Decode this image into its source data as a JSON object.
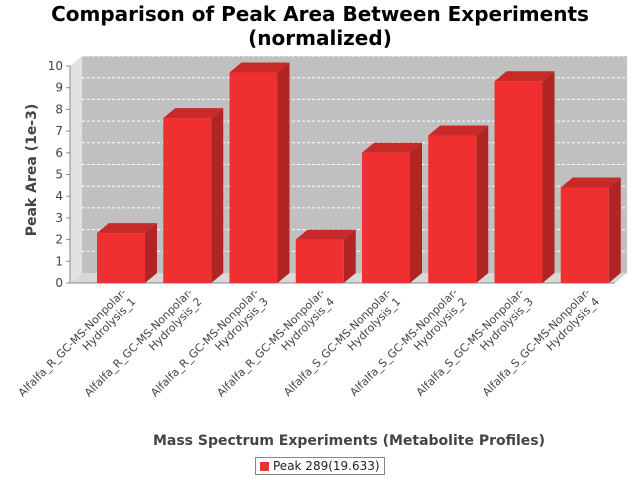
{
  "chart_data": {
    "type": "bar",
    "title_lines": [
      "Comparison of Peak Area Between Experiments",
      "(normalized)"
    ],
    "xlabel": "Mass Spectrum Experiments (Metabolite Profiles)",
    "ylabel": "Peak Area (1e-3)",
    "categories": [
      [
        "Alfalfa_R_GC-MS-Nonpolar-",
        "Hydrolysis_1"
      ],
      [
        "Alfalfa_R_GC-MS-Nonpolar-",
        "Hydrolysis_2"
      ],
      [
        "Alfalfa_R_GC-MS-Nonpolar-",
        "Hydrolysis_3"
      ],
      [
        "Alfalfa_R_GC-MS-Nonpolar-",
        "Hydrolysis_4"
      ],
      [
        "Alfalfa_S_GC-MS-Nonpolar-",
        "Hydrolysis_1"
      ],
      [
        "Alfalfa_S_GC-MS-Nonpolar-",
        "Hydrolysis_2"
      ],
      [
        "Alfalfa_S_GC-MS-Nonpolar-",
        "Hydrolysis_3"
      ],
      [
        "Alfalfa_S_GC-MS-Nonpolar-",
        "Hydrolysis_4"
      ]
    ],
    "series": [
      {
        "name": "Peak 289(19.633)",
        "values": [
          2.3,
          7.6,
          9.7,
          2.0,
          6.0,
          6.8,
          9.3,
          4.4
        ]
      }
    ],
    "yticks": [
      "0",
      "1",
      "2",
      "3",
      "4",
      "5",
      "6",
      "7",
      "8",
      "9",
      "10"
    ],
    "ylim": [
      0,
      10
    ],
    "grid": true,
    "legend_position": "bottom-center",
    "colors": {
      "bar_front": "#f03030",
      "bar_side": "#b02424",
      "bar_top": "#c82a2a",
      "plot_back": "#c0c0c0",
      "plot_wall": "#e2e2e2",
      "plot_floor": "#d8d8d8",
      "gridline": "#ffffff"
    }
  }
}
